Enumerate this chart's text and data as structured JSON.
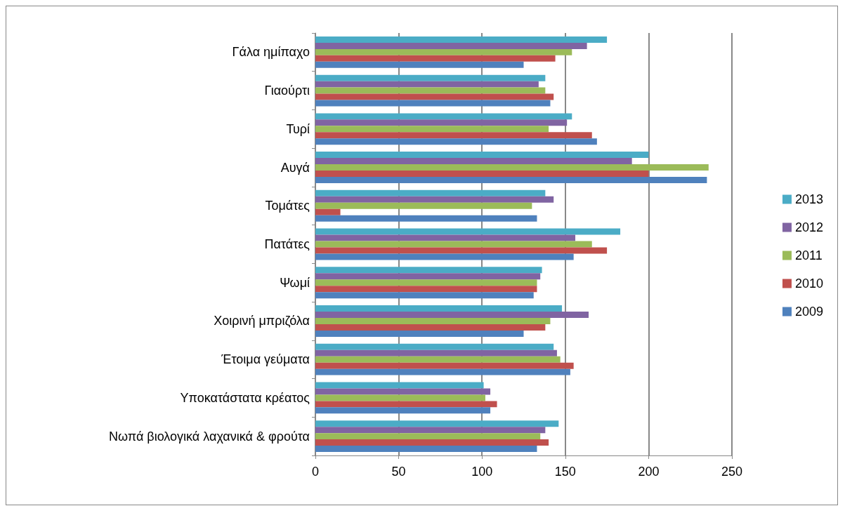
{
  "chart_data": {
    "type": "bar",
    "orientation": "horizontal",
    "categories": [
      "Γάλα ημίπαχο",
      "Γιαούρτι",
      "Τυρί",
      "Αυγά",
      "Τομάτες",
      "Πατάτες",
      "Ψωμί",
      "Χοιρινή μπριζόλα",
      "Έτοιμα γεύματα",
      "Υποκατάστατα κρέατος",
      "Νωπά βιολογικά λαχανικά & φρούτα"
    ],
    "series": [
      {
        "name": "2013",
        "color": "#4bacc6",
        "values": [
          175,
          138,
          154,
          200,
          138,
          183,
          136,
          148,
          143,
          101,
          146
        ]
      },
      {
        "name": "2012",
        "color": "#8064a2",
        "values": [
          163,
          134,
          151,
          190,
          143,
          156,
          135,
          164,
          145,
          105,
          138
        ]
      },
      {
        "name": "2011",
        "color": "#9bbb59",
        "values": [
          154,
          138,
          140,
          236,
          130,
          166,
          133,
          141,
          147,
          102,
          135
        ]
      },
      {
        "name": "2010",
        "color": "#c0504d",
        "values": [
          144,
          143,
          166,
          200,
          15,
          175,
          133,
          138,
          155,
          109,
          140
        ]
      },
      {
        "name": "2009",
        "color": "#4f81bd",
        "values": [
          125,
          141,
          169,
          235,
          133,
          155,
          131,
          125,
          153,
          105,
          133
        ]
      }
    ],
    "xlim": [
      0,
      250
    ],
    "xticks": [
      0,
      50,
      100,
      150,
      200,
      250
    ],
    "grid": "x",
    "legend": "right"
  }
}
